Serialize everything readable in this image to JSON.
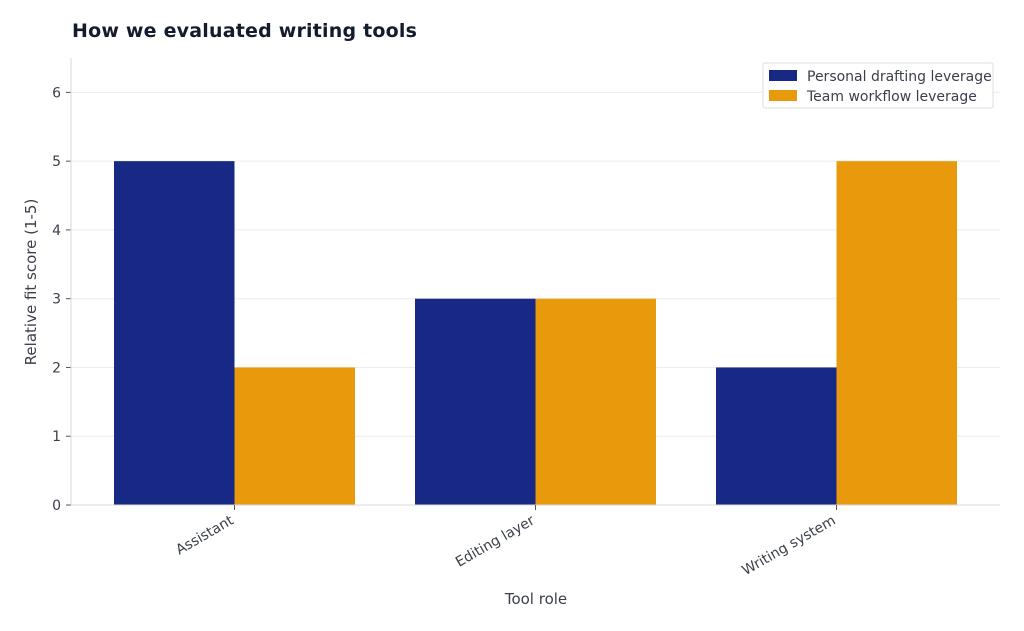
{
  "title": "How we evaluated writing tools",
  "colors": {
    "series_0": "#172885",
    "series_1": "#e99a0c",
    "grid": "#ececec",
    "axis": "#d9d9d9"
  },
  "chart_data": {
    "type": "bar",
    "title": "How we evaluated writing tools",
    "xlabel": "Tool role",
    "ylabel": "Relative fit score (1-5)",
    "categories": [
      "Assistant",
      "Editing layer",
      "Writing system"
    ],
    "series": [
      {
        "name": "Personal drafting leverage",
        "values": [
          5,
          3,
          2
        ]
      },
      {
        "name": "Team workflow leverage",
        "values": [
          2,
          3,
          5
        ]
      }
    ],
    "ylim": [
      0,
      6.5
    ],
    "yticks": [
      0,
      1,
      2,
      3,
      4,
      5,
      6
    ],
    "grid": true,
    "legend": "top-right"
  }
}
